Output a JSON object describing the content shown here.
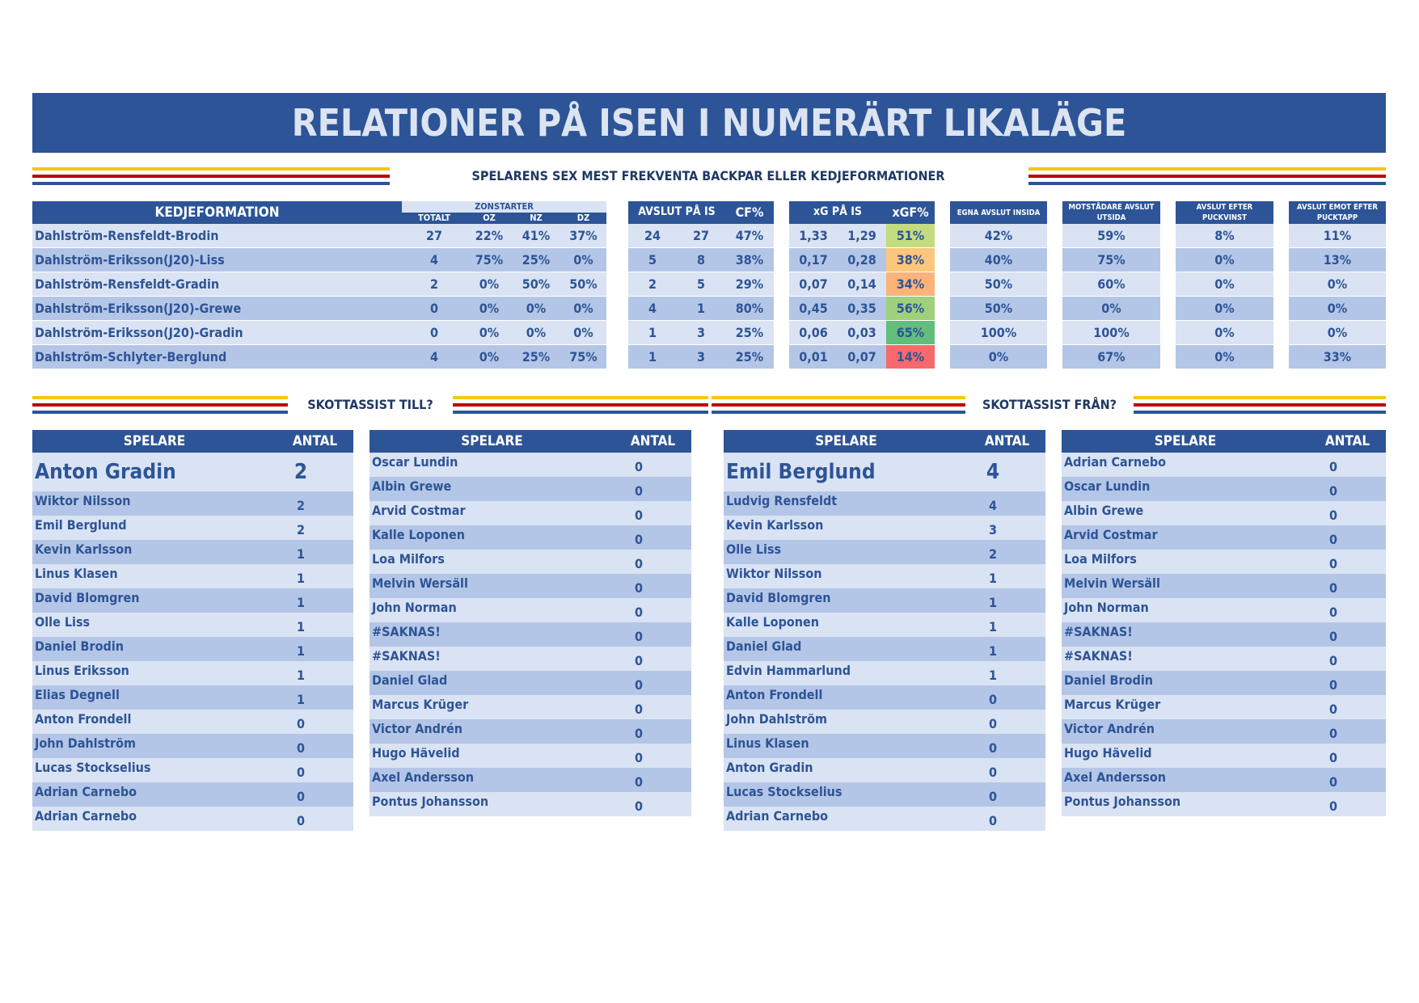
{
  "title": "RELATIONER PÅ ISEN I NUMERÄRT LIKALÄGE",
  "subtitle": "SPELARENS SEX MEST FREKVENTA BACKPAR ELLER KEDJEFORMATIONER",
  "colors": {
    "primary": "#2d5496",
    "light_row": "#dae3f3",
    "dark_row": "#b4c6e7",
    "stripe_yellow": "#f5c518",
    "stripe_red": "#c00000"
  },
  "formations": {
    "headers": {
      "kedjeformation": "KEDJEFORMATION",
      "zonstarter": "ZONSTARTER",
      "totalt": "TOTALT",
      "oz": "OZ",
      "nz": "NZ",
      "dz": "DZ",
      "avslut_pa_is": "AVSLUT PÅ IS",
      "cf": "CF%",
      "xg_pa_is": "xG PÅ IS",
      "xgf": "xGF%",
      "egna_avslut_insida": "EGNA AVSLUT INSIDA",
      "motstandare_avslut_utsida": "MOTSTÅDARE AVSLUT UTSIDA",
      "avslut_efter_puckvinst": "AVSLUT EFTER PUCKVINST",
      "avslut_emot_efter_pucktapp": "AVSLUT EMOT EFTER PUCKTAPP"
    },
    "rows": [
      {
        "name": "Dahlström-Rensfeldt-Brodin",
        "totalt": "27",
        "oz": "22%",
        "nz": "41%",
        "dz": "37%",
        "af": "24",
        "aa": "27",
        "cf": "47%",
        "xgf_val": "1,33",
        "xga_val": "1,29",
        "xgf": "51%",
        "xgf_color": "#c3dc7f",
        "insida": "42%",
        "utsida": "59%",
        "puckvinst": "8%",
        "pucktapp": "11%"
      },
      {
        "name": "Dahlström-Eriksson(J20)-Liss",
        "totalt": "4",
        "oz": "75%",
        "nz": "25%",
        "dz": "0%",
        "af": "5",
        "aa": "8",
        "cf": "38%",
        "xgf_val": "0,17",
        "xga_val": "0,28",
        "xgf": "38%",
        "xgf_color": "#fcc77c",
        "insida": "40%",
        "utsida": "75%",
        "puckvinst": "0%",
        "pucktapp": "13%"
      },
      {
        "name": "Dahlström-Rensfeldt-Gradin",
        "totalt": "2",
        "oz": "0%",
        "nz": "50%",
        "dz": "50%",
        "af": "2",
        "aa": "5",
        "cf": "29%",
        "xgf_val": "0,07",
        "xga_val": "0,14",
        "xgf": "34%",
        "xgf_color": "#fbb379",
        "insida": "50%",
        "utsida": "60%",
        "puckvinst": "0%",
        "pucktapp": "0%"
      },
      {
        "name": "Dahlström-Eriksson(J20)-Grewe",
        "totalt": "0",
        "oz": "0%",
        "nz": "0%",
        "dz": "0%",
        "af": "4",
        "aa": "1",
        "cf": "80%",
        "xgf_val": "0,45",
        "xga_val": "0,35",
        "xgf": "56%",
        "xgf_color": "#9fd07c",
        "insida": "50%",
        "utsida": "0%",
        "puckvinst": "0%",
        "pucktapp": "0%"
      },
      {
        "name": "Dahlström-Eriksson(J20)-Gradin",
        "totalt": "0",
        "oz": "0%",
        "nz": "0%",
        "dz": "0%",
        "af": "1",
        "aa": "3",
        "cf": "25%",
        "xgf_val": "0,06",
        "xga_val": "0,03",
        "xgf": "65%",
        "xgf_color": "#63be7b",
        "insida": "100%",
        "utsida": "100%",
        "puckvinst": "0%",
        "pucktapp": "0%"
      },
      {
        "name": "Dahlström-Schlyter-Berglund",
        "totalt": "4",
        "oz": "0%",
        "nz": "25%",
        "dz": "75%",
        "af": "1",
        "aa": "3",
        "cf": "25%",
        "xgf_val": "0,01",
        "xga_val": "0,07",
        "xgf": "14%",
        "xgf_color": "#f8696b",
        "insida": "0%",
        "utsida": "67%",
        "puckvinst": "0%",
        "pucktapp": "33%"
      }
    ]
  },
  "assist_till": {
    "title": "SKOTTASSIST TILL?",
    "col_spelare": "SPELARE",
    "col_antal": "ANTAL",
    "list1": [
      {
        "name": "Anton Gradin",
        "value": "2"
      },
      {
        "name": "Wiktor Nilsson",
        "value": "2"
      },
      {
        "name": "Emil Berglund",
        "value": "2"
      },
      {
        "name": "Kevin Karlsson",
        "value": "1"
      },
      {
        "name": "Linus Klasen",
        "value": "1"
      },
      {
        "name": "David Blomgren",
        "value": "1"
      },
      {
        "name": "Olle Liss",
        "value": "1"
      },
      {
        "name": "Daniel Brodin",
        "value": "1"
      },
      {
        "name": "Linus Eriksson",
        "value": "1"
      },
      {
        "name": "Elias Degnell",
        "value": "1"
      },
      {
        "name": "Anton Frondell",
        "value": "0"
      },
      {
        "name": "John Dahlström",
        "value": "0"
      },
      {
        "name": "Lucas Stockselius",
        "value": "0"
      },
      {
        "name": "Adrian Carnebo",
        "value": "0"
      },
      {
        "name": "Adrian Carnebo",
        "value": "0"
      }
    ],
    "list2": [
      {
        "name": "Oscar Lundin",
        "value": "0"
      },
      {
        "name": "Albin Grewe",
        "value": "0"
      },
      {
        "name": "Arvid Costmar",
        "value": "0"
      },
      {
        "name": "Kalle Loponen",
        "value": "0"
      },
      {
        "name": "Loa Milfors",
        "value": "0"
      },
      {
        "name": "Melvin Wersäll",
        "value": "0"
      },
      {
        "name": "John Norman",
        "value": "0"
      },
      {
        "name": "#SAKNAS!",
        "value": "0"
      },
      {
        "name": "#SAKNAS!",
        "value": "0"
      },
      {
        "name": "Daniel Glad",
        "value": "0"
      },
      {
        "name": "Marcus Krüger",
        "value": "0"
      },
      {
        "name": "Victor Andrén",
        "value": "0"
      },
      {
        "name": "Hugo Hävelid",
        "value": "0"
      },
      {
        "name": "Axel Andersson",
        "value": "0"
      },
      {
        "name": "Pontus Johansson",
        "value": "0"
      }
    ]
  },
  "assist_fran": {
    "title": "SKOTTASSIST FRÅN?",
    "col_spelare": "SPELARE",
    "col_antal": "ANTAL",
    "list1": [
      {
        "name": "Emil Berglund",
        "value": "4"
      },
      {
        "name": "Ludvig Rensfeldt",
        "value": "4"
      },
      {
        "name": "Kevin Karlsson",
        "value": "3"
      },
      {
        "name": "Olle Liss",
        "value": "2"
      },
      {
        "name": "Wiktor Nilsson",
        "value": "1"
      },
      {
        "name": "David Blomgren",
        "value": "1"
      },
      {
        "name": "Kalle Loponen",
        "value": "1"
      },
      {
        "name": "Daniel Glad",
        "value": "1"
      },
      {
        "name": "Edvin Hammarlund",
        "value": "1"
      },
      {
        "name": "Anton Frondell",
        "value": "0"
      },
      {
        "name": "John Dahlström",
        "value": "0"
      },
      {
        "name": "Linus Klasen",
        "value": "0"
      },
      {
        "name": "Anton Gradin",
        "value": "0"
      },
      {
        "name": "Lucas Stockselius",
        "value": "0"
      },
      {
        "name": "Adrian Carnebo",
        "value": "0"
      }
    ],
    "list2": [
      {
        "name": "Adrian Carnebo",
        "value": "0"
      },
      {
        "name": "Oscar Lundin",
        "value": "0"
      },
      {
        "name": "Albin Grewe",
        "value": "0"
      },
      {
        "name": "Arvid Costmar",
        "value": "0"
      },
      {
        "name": "Loa Milfors",
        "value": "0"
      },
      {
        "name": "Melvin Wersäll",
        "value": "0"
      },
      {
        "name": "John Norman",
        "value": "0"
      },
      {
        "name": "#SAKNAS!",
        "value": "0"
      },
      {
        "name": "#SAKNAS!",
        "value": "0"
      },
      {
        "name": "Daniel Brodin",
        "value": "0"
      },
      {
        "name": "Marcus Krüger",
        "value": "0"
      },
      {
        "name": "Victor Andrén",
        "value": "0"
      },
      {
        "name": "Hugo Hävelid",
        "value": "0"
      },
      {
        "name": "Axel Andersson",
        "value": "0"
      },
      {
        "name": "Pontus Johansson",
        "value": "0"
      }
    ]
  }
}
